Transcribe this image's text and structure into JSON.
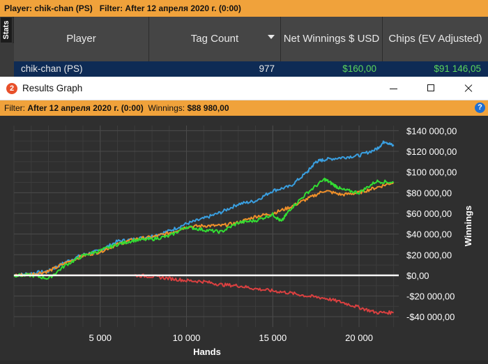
{
  "stats_window": {
    "player_label": "Player:",
    "player_value": "chik-chan (PS)",
    "filter_label": "Filter:",
    "filter_value": "After 12 апреля 2020 г. (0:00)",
    "stats_tab": "Stats",
    "columns": [
      "Player",
      "Tag Count",
      "Net Winnings $ USD",
      "Chips (EV Adjusted)"
    ],
    "row": {
      "player": "chik-chan (PS)",
      "tag_count": "977",
      "net_winnings": "$160,00",
      "chips_ev": "$91 146,05"
    }
  },
  "graph_window": {
    "title": "Results Graph",
    "filter_label": "Filter:",
    "filter_value": "After 12 апреля 2020 г. (0:00)",
    "winnings_label": "Winnings:",
    "winnings_value": "$88 980,00",
    "help": "?"
  },
  "colors": {
    "blue": "#3a9fe0",
    "orange": "#f0902a",
    "green": "#33dd33",
    "red": "#d94040",
    "zero_line": "#ffffff"
  },
  "chart_data": {
    "type": "line",
    "xlabel": "Hands",
    "ylabel": "Winnings",
    "xlim": [
      0,
      22300
    ],
    "ylim": [
      -50000,
      145000
    ],
    "x_ticks": [
      5000,
      10000,
      15000,
      20000
    ],
    "x_tick_labels": [
      "5 000",
      "10 000",
      "15 000",
      "20 000"
    ],
    "y_ticks": [
      140000,
      120000,
      100000,
      80000,
      60000,
      40000,
      20000,
      0,
      -20000,
      -40000
    ],
    "y_tick_labels": [
      "$140 000,00",
      "$120 000,00",
      "$100 000,00",
      "$80 000,00",
      "$60 000,00",
      "$40 000,00",
      "$20 000,00",
      "$0,00",
      "-$20 000,00",
      "-$40 000,00"
    ],
    "grid": true,
    "series": [
      {
        "color": "blue",
        "x": [
          0,
          1000,
          2000,
          3000,
          4000,
          5000,
          6000,
          7000,
          8000,
          9000,
          10000,
          11000,
          12000,
          13000,
          14000,
          15000,
          16000,
          17000,
          17500,
          18000,
          19000,
          20000,
          21000,
          21500,
          22000
        ],
        "y": [
          0,
          2000,
          4000,
          13000,
          20000,
          24000,
          33000,
          35000,
          38000,
          43000,
          50000,
          55000,
          61000,
          69000,
          72000,
          82000,
          86000,
          100000,
          110000,
          112000,
          114000,
          116000,
          122000,
          130000,
          125000
        ]
      },
      {
        "color": "orange",
        "x": [
          0,
          1000,
          2000,
          3000,
          4000,
          5000,
          6000,
          7000,
          8000,
          9000,
          10000,
          11000,
          12000,
          13000,
          14000,
          15000,
          16000,
          17000,
          18000,
          19000,
          20000,
          21000,
          22000
        ],
        "y": [
          0,
          1000,
          4000,
          12000,
          19000,
          23000,
          30000,
          35000,
          37000,
          41000,
          47000,
          48000,
          48000,
          51000,
          57000,
          60000,
          66000,
          74000,
          82000,
          78000,
          80000,
          85000,
          90000
        ]
      },
      {
        "color": "green",
        "x": [
          0,
          1000,
          2000,
          3000,
          4000,
          5000,
          6000,
          7000,
          8000,
          9000,
          10000,
          11000,
          12000,
          13000,
          14000,
          15000,
          15500,
          16000,
          17000,
          18000,
          18500,
          19000,
          20000,
          21000,
          22000
        ],
        "y": [
          0,
          0,
          -3000,
          10000,
          19000,
          24000,
          30000,
          34000,
          35000,
          38000,
          47000,
          44000,
          42000,
          51000,
          53000,
          59000,
          52000,
          64000,
          80000,
          93000,
          88000,
          83000,
          80000,
          91000,
          90000
        ]
      },
      {
        "color": "red",
        "x": [
          0,
          1000,
          2000,
          3000,
          4000,
          5000,
          6000,
          7000,
          8000,
          9000,
          10000,
          11000,
          12000,
          13000,
          14000,
          15000,
          16000,
          17000,
          18000,
          19000,
          20000,
          21000,
          22000
        ],
        "y": [
          0,
          0,
          0,
          0,
          0,
          0,
          0,
          0,
          -1000,
          -3000,
          -5000,
          -6000,
          -9000,
          -10000,
          -13000,
          -15000,
          -17000,
          -20000,
          -22000,
          -26000,
          -31000,
          -36000,
          -36000
        ]
      }
    ]
  }
}
